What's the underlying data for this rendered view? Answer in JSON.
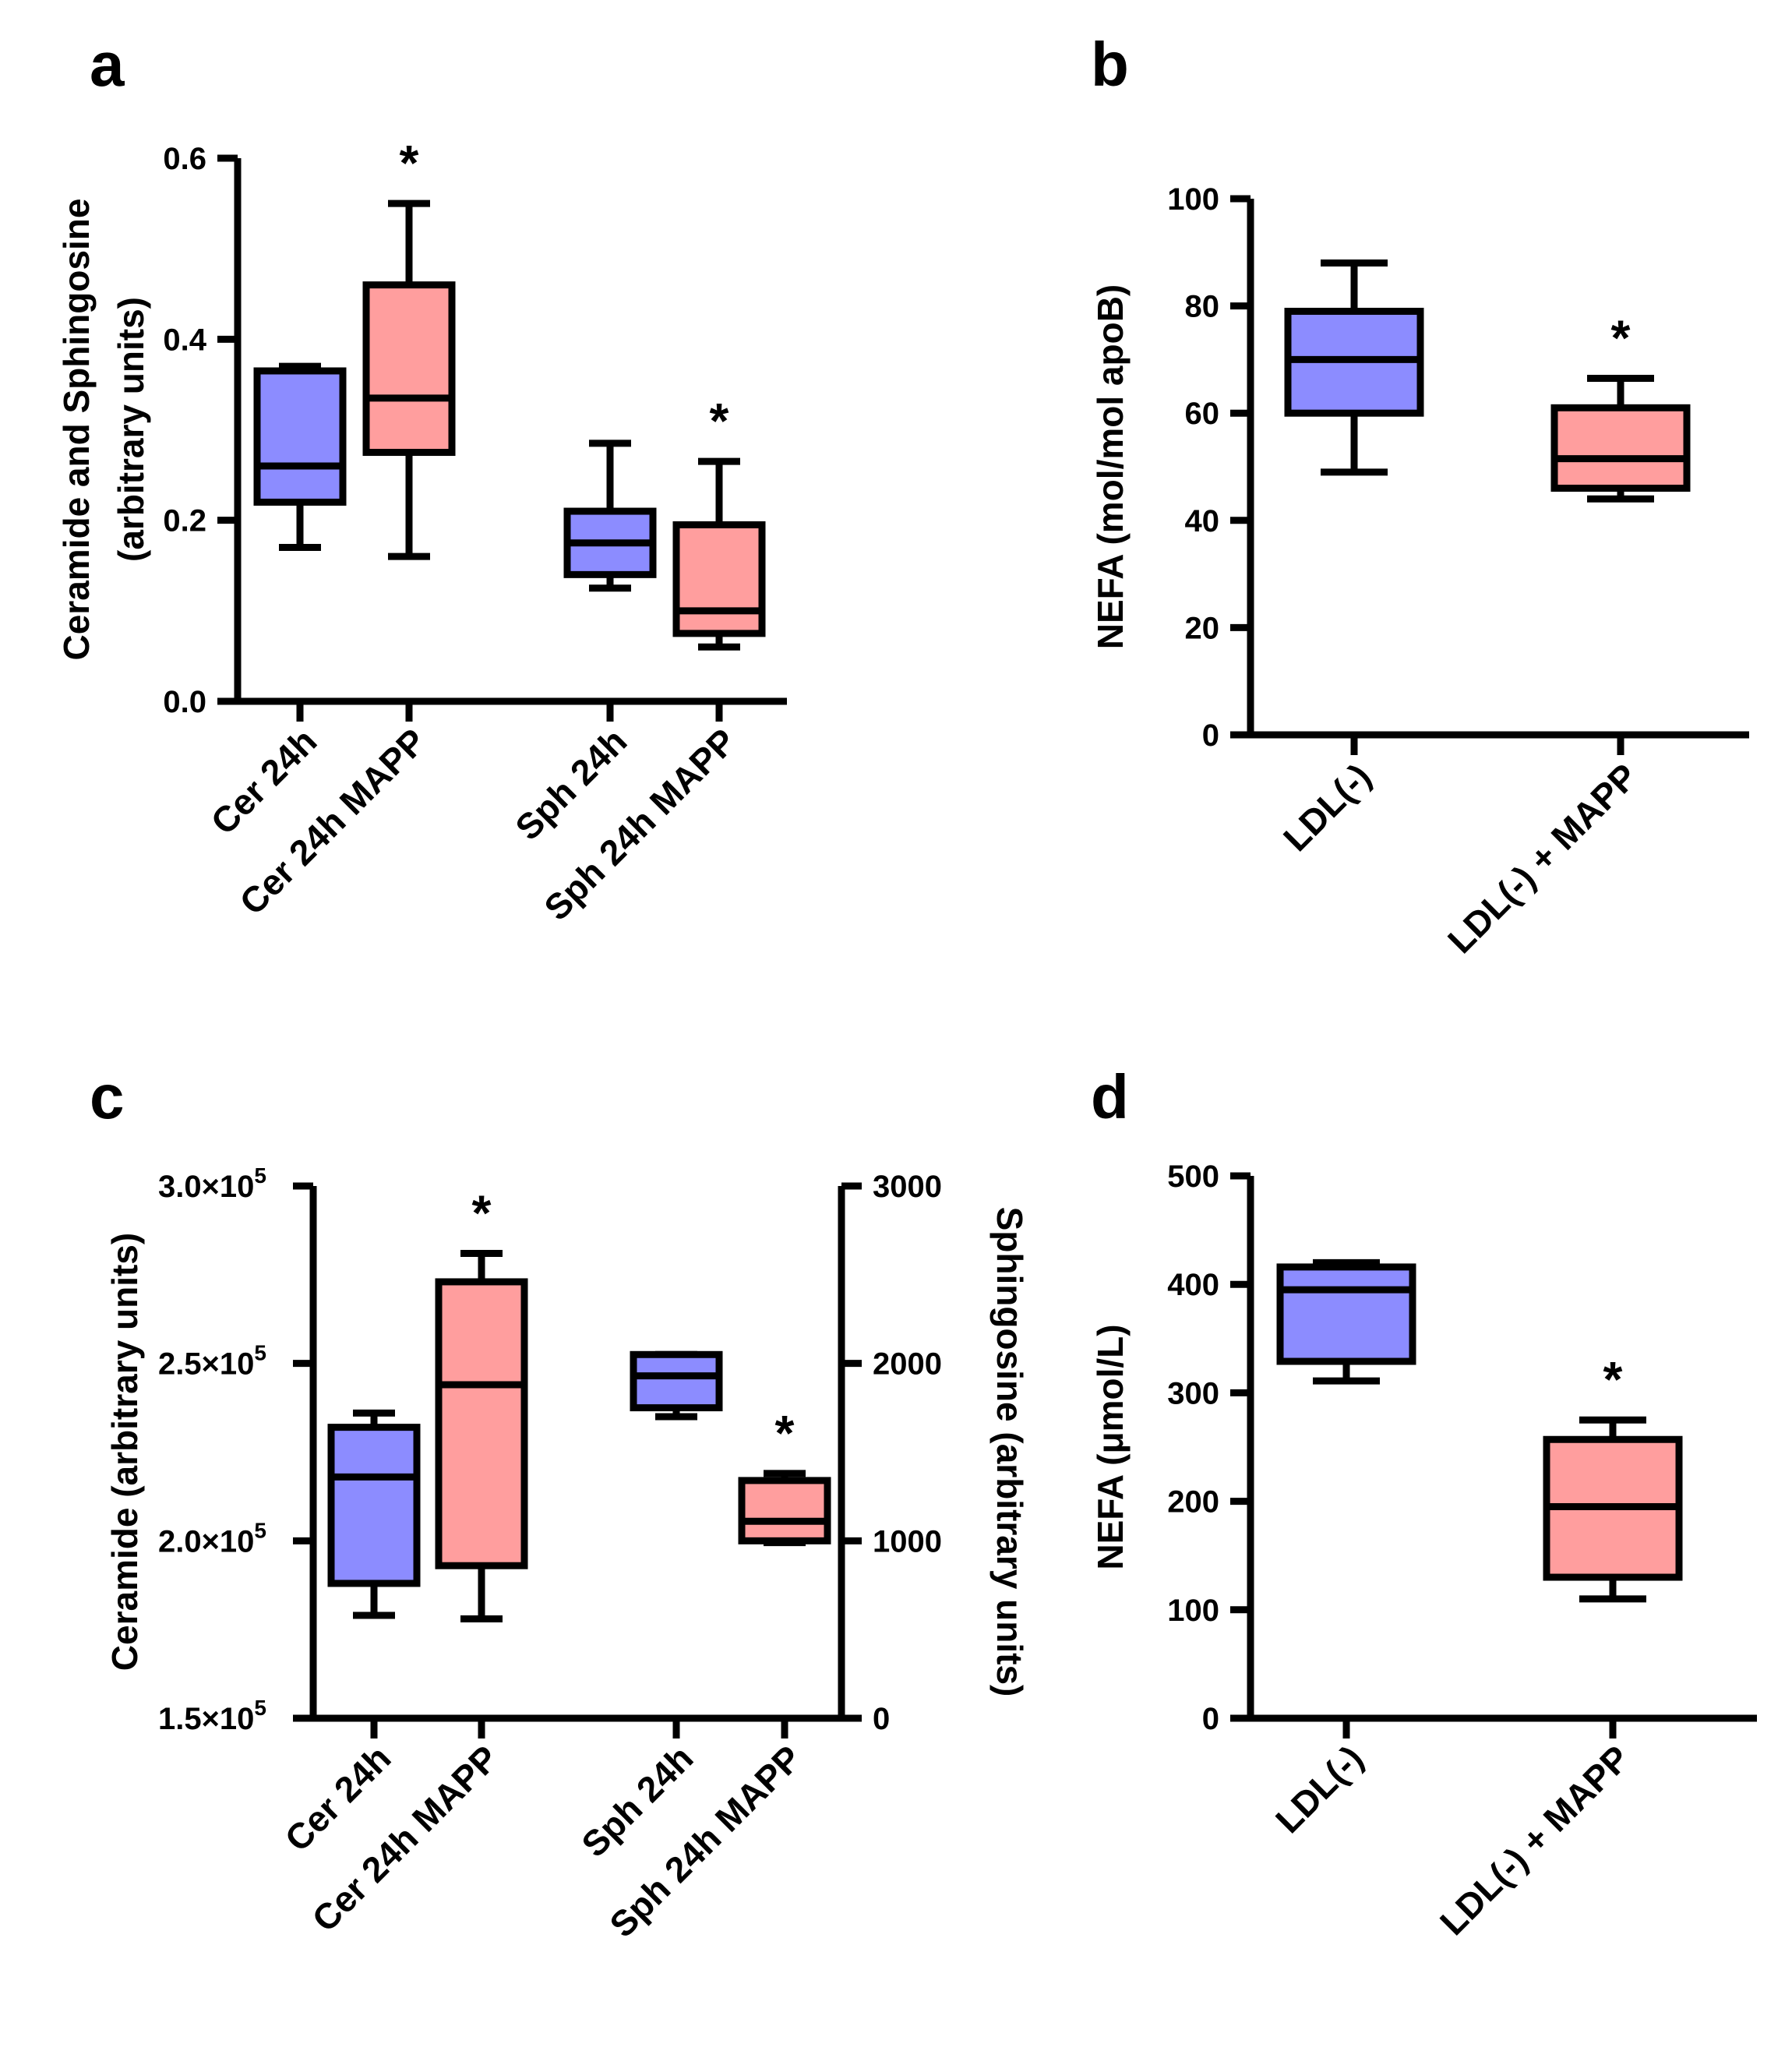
{
  "chart_data": [
    {
      "panel": "a",
      "type": "box",
      "ylabel": [
        "Ceramide and Sphingosine",
        "(arbitrary units)"
      ],
      "ylim": [
        0.0,
        0.6
      ],
      "yticks": [
        0.0,
        0.2,
        0.4,
        0.6
      ],
      "ytick_labels": [
        "0.0",
        "0.2",
        "0.4",
        "0.6"
      ],
      "categories": [
        "Cer 24h",
        "Cer 24h MAPP",
        "Sph 24h",
        "Sph 24h MAPP"
      ],
      "boxes": [
        {
          "category": "Cer 24h",
          "color": "#8c8cff",
          "min": 0.17,
          "q1": 0.22,
          "median": 0.26,
          "q3": 0.365,
          "max": 0.37,
          "significant": false
        },
        {
          "category": "Cer 24h MAPP",
          "color": "#ff9e9e",
          "min": 0.16,
          "q1": 0.275,
          "median": 0.335,
          "q3": 0.46,
          "max": 0.55,
          "significant": true
        },
        {
          "category": "Sph 24h",
          "color": "#8c8cff",
          "min": 0.125,
          "q1": 0.14,
          "median": 0.175,
          "q3": 0.21,
          "max": 0.285,
          "significant": false
        },
        {
          "category": "Sph 24h MAPP",
          "color": "#ff9e9e",
          "min": 0.06,
          "q1": 0.075,
          "median": 0.1,
          "q3": 0.195,
          "max": 0.265,
          "significant": true
        }
      ],
      "significance_mark": "*"
    },
    {
      "panel": "b",
      "type": "box",
      "ylabel": [
        "NEFA (mol/mol apoB)"
      ],
      "ylim": [
        0,
        100
      ],
      "yticks": [
        0,
        20,
        40,
        60,
        80,
        100
      ],
      "ytick_labels": [
        "0",
        "20",
        "40",
        "60",
        "80",
        "100"
      ],
      "categories": [
        "LDL(-)",
        "LDL(-) + MAPP"
      ],
      "boxes": [
        {
          "category": "LDL(-)",
          "color": "#8c8cff",
          "min": 49,
          "q1": 60,
          "median": 70,
          "q3": 79,
          "max": 88,
          "significant": false
        },
        {
          "category": "LDL(-) + MAPP",
          "color": "#ff9e9e",
          "min": 44,
          "q1": 46,
          "median": 51.5,
          "q3": 61,
          "max": 66.5,
          "significant": true
        }
      ],
      "significance_mark": "*"
    },
    {
      "panel": "c",
      "type": "box",
      "ylabel": [
        "Ceramide (arbitrary units)"
      ],
      "ylabel_right": "Sphingosine (arbitrary units)",
      "ylim": [
        150000,
        300000
      ],
      "yticks": [
        150000,
        200000,
        250000,
        300000
      ],
      "ytick_labels": [
        "1.5×10",
        "2.0×10",
        "2.5×10",
        "3.0×10"
      ],
      "ytick_exponent": "5",
      "ylim_right": [
        0,
        3000
      ],
      "yticks_right": [
        0,
        1000,
        2000,
        3000
      ],
      "ytick_labels_right": [
        "0",
        "1000",
        "2000",
        "3000"
      ],
      "categories": [
        "Cer 24h",
        "Cer 24h MAPP",
        "Sph 24h",
        "Sph 24h MAPP"
      ],
      "boxes": [
        {
          "category": "Cer 24h",
          "axis": "left",
          "color": "#8c8cff",
          "min": 179000,
          "q1": 188000,
          "median": 218000,
          "q3": 232000,
          "max": 236000,
          "significant": false
        },
        {
          "category": "Cer 24h MAPP",
          "axis": "left",
          "color": "#ff9e9e",
          "min": 178000,
          "q1": 193000,
          "median": 244000,
          "q3": 273000,
          "max": 281000,
          "significant": true
        },
        {
          "category": "Sph 24h",
          "axis": "right",
          "color": "#8c8cff",
          "min": 1700,
          "q1": 1750,
          "median": 1930,
          "q3": 2050,
          "max": 2050,
          "significant": false
        },
        {
          "category": "Sph 24h MAPP",
          "axis": "right",
          "color": "#ff9e9e",
          "min": 990,
          "q1": 1000,
          "median": 1110,
          "q3": 1340,
          "max": 1380,
          "significant": true
        }
      ],
      "significance_mark": "*"
    },
    {
      "panel": "d",
      "type": "box",
      "ylabel": [
        "NEFA (μmol/L)"
      ],
      "ylim": [
        0,
        500
      ],
      "yticks": [
        0,
        100,
        200,
        300,
        400,
        500
      ],
      "ytick_labels": [
        "0",
        "100",
        "200",
        "300",
        "400",
        "500"
      ],
      "categories": [
        "LDL(-)",
        "LDL(-) + MAPP"
      ],
      "boxes": [
        {
          "category": "LDL(-)",
          "color": "#8c8cff",
          "min": 311,
          "q1": 329,
          "median": 395,
          "q3": 416,
          "max": 420,
          "significant": false
        },
        {
          "category": "LDL(-) + MAPP",
          "color": "#ff9e9e",
          "min": 110,
          "q1": 130,
          "median": 195,
          "q3": 257,
          "max": 275,
          "significant": true
        }
      ],
      "significance_mark": "*"
    }
  ]
}
